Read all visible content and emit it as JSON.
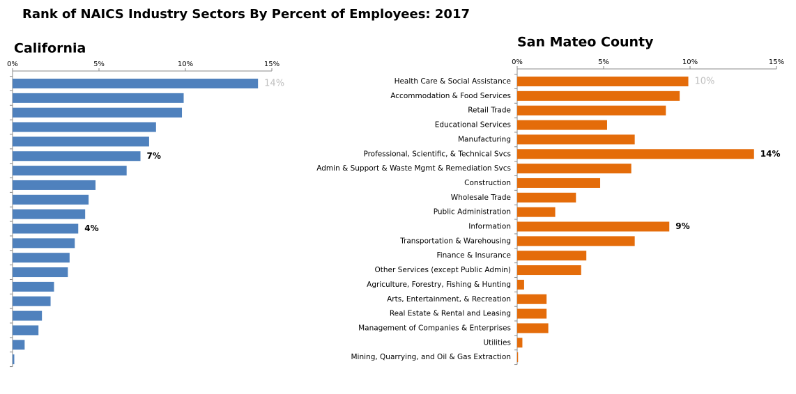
{
  "title": "Rank of NAICS Industry Sectors By Percent of Employees: 2017",
  "chart_data": [
    {
      "type": "barh",
      "title": "California",
      "categories": [
        null,
        null,
        null,
        null,
        null,
        null,
        null,
        null,
        null,
        null,
        null,
        null,
        null,
        null,
        null,
        null,
        null,
        null,
        null,
        null
      ],
      "values": [
        14.2,
        9.9,
        9.8,
        8.3,
        7.9,
        7.4,
        6.6,
        4.8,
        4.4,
        4.2,
        3.8,
        3.6,
        3.3,
        3.2,
        2.4,
        2.2,
        1.7,
        1.5,
        0.7,
        0.1
      ],
      "value_labels": [
        "14%",
        null,
        null,
        null,
        null,
        "7%",
        null,
        null,
        null,
        null,
        "4%",
        null,
        null,
        null,
        null,
        null,
        null,
        null,
        null,
        null
      ],
      "color": "#4f81bd",
      "xlim": [
        0,
        15
      ],
      "xticks": [
        {
          "value": 0,
          "label": "0%"
        },
        {
          "value": 5,
          "label": "5%"
        },
        {
          "value": 10,
          "label": "10%"
        },
        {
          "value": 15,
          "label": "15%"
        }
      ]
    },
    {
      "type": "barh",
      "title": "San Mateo County",
      "categories": [
        "Health Care & Social Assistance",
        "Accommodation & Food Services",
        "Retail Trade",
        "Educational Services",
        "Manufacturing",
        "Professional, Scientific, & Technical Svcs",
        "Admin & Support & Waste Mgmt & Remediation Svcs",
        "Construction",
        "Wholesale Trade",
        "Public Administration",
        "Information",
        "Transportation & Warehousing",
        "Finance & Insurance",
        "Other Services (except Public Admin)",
        "Agriculture, Forestry, Fishing & Hunting",
        "Arts, Entertainment, & Recreation",
        "Real Estate & Rental and Leasing",
        "Management of Companies & Enterprises",
        "Utilities",
        "Mining, Quarrying, and Oil & Gas Extraction"
      ],
      "values": [
        9.9,
        9.4,
        8.6,
        5.2,
        6.8,
        13.7,
        6.6,
        4.8,
        3.4,
        2.2,
        8.8,
        6.8,
        4.0,
        3.7,
        0.4,
        1.7,
        1.7,
        1.8,
        0.3,
        0.05
      ],
      "value_labels": [
        "10%",
        null,
        null,
        null,
        null,
        "14%",
        null,
        null,
        null,
        null,
        "9%",
        null,
        null,
        null,
        null,
        null,
        null,
        null,
        null,
        null
      ],
      "color": "#e46c0a",
      "xlim": [
        0,
        15
      ],
      "xticks": [
        {
          "value": 0,
          "label": "0%"
        },
        {
          "value": 5,
          "label": "5%"
        },
        {
          "value": 10,
          "label": "10%"
        },
        {
          "value": 15,
          "label": "15%"
        }
      ]
    }
  ]
}
